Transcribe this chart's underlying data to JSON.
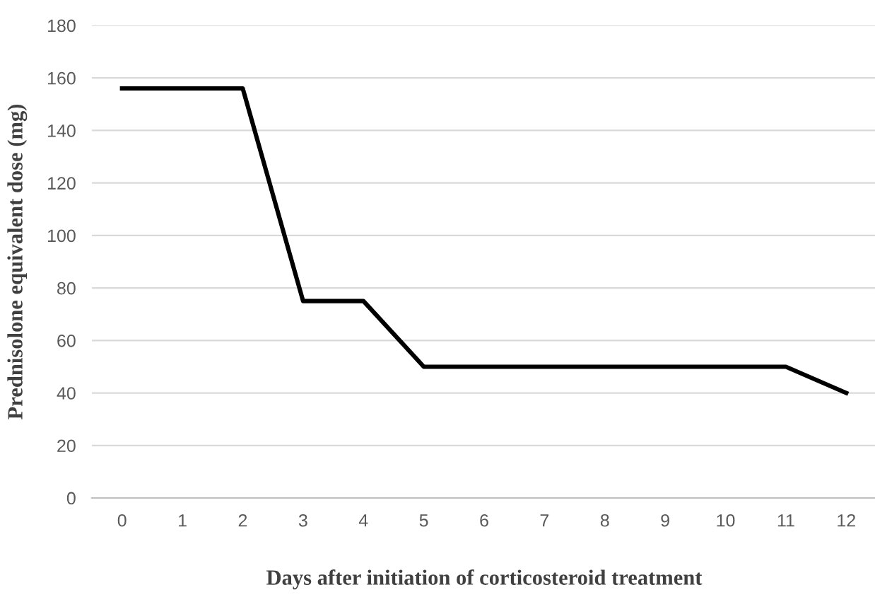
{
  "chart_data": {
    "type": "line",
    "xlabel": "Days after initiation of corticosteroid treatment",
    "ylabel": "Prednisolone equivalent dose (mg)",
    "categories": [
      "0",
      "1",
      "2",
      "3",
      "4",
      "5",
      "6",
      "7",
      "8",
      "9",
      "10",
      "11",
      "12"
    ],
    "series": [
      {
        "color": "#000000",
        "values": [
          156,
          156,
          156,
          75,
          75,
          50,
          50,
          50,
          50,
          50,
          50,
          50,
          40
        ]
      }
    ],
    "ylim": [
      0,
      180
    ],
    "yticks": [
      0,
      20,
      40,
      60,
      80,
      100,
      120,
      140,
      160,
      180
    ],
    "grid": "y",
    "legend": false,
    "marker": "none",
    "line_style": "solid"
  }
}
